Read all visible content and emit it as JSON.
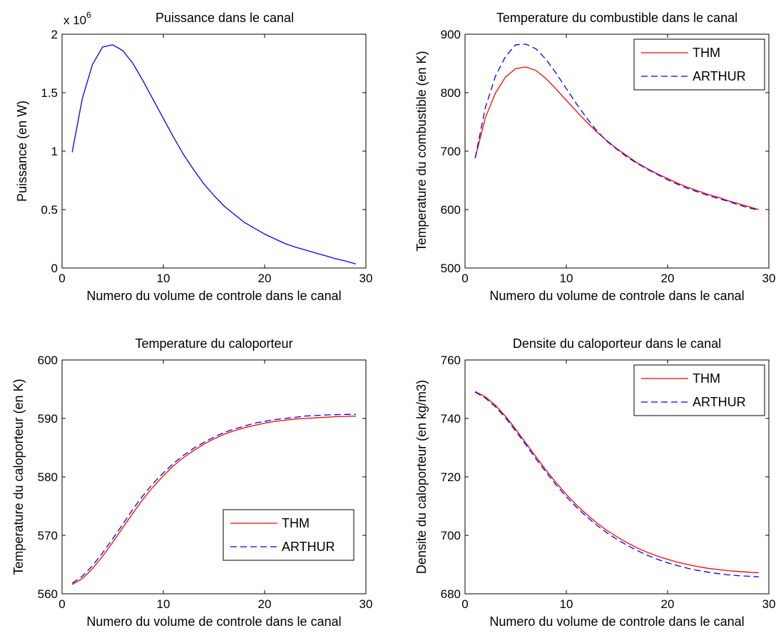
{
  "chart_data": [
    {
      "type": "line",
      "title": "Puissance dans le canal",
      "xlabel": "Numero du volume de controle dans le canal",
      "ylabel": "Puissance (en W)",
      "xlim": [
        0,
        30
      ],
      "ylim": [
        0,
        2
      ],
      "xticks": [
        0,
        10,
        20,
        30
      ],
      "yticks": [
        0,
        0.5,
        1,
        1.5,
        2
      ],
      "ytick_labels": [
        "0",
        "0.5",
        "1",
        "1.5",
        "2"
      ],
      "multiplier_base": "x 10",
      "multiplier_exp": "6",
      "grid": false,
      "legend": null,
      "series": [
        {
          "color": "#0000ff",
          "dash": "solid",
          "x": [
            1,
            2,
            3,
            4,
            5,
            6,
            7,
            8,
            9,
            10,
            11,
            12,
            13,
            14,
            15,
            16,
            17,
            18,
            19,
            20,
            21,
            22,
            23,
            24,
            25,
            26,
            27,
            28,
            29
          ],
          "values": [
            0.99,
            1.45,
            1.74,
            1.89,
            1.91,
            1.86,
            1.75,
            1.6,
            1.44,
            1.28,
            1.12,
            0.97,
            0.84,
            0.72,
            0.62,
            0.53,
            0.46,
            0.39,
            0.34,
            0.29,
            0.25,
            0.21,
            0.18,
            0.155,
            0.13,
            0.105,
            0.08,
            0.06,
            0.035
          ]
        }
      ]
    },
    {
      "type": "line",
      "title": "Temperature du combustible dans le canal",
      "xlabel": "Numero du volume de controle dans le canal",
      "ylabel": "Temperature du combustible (en K)",
      "xlim": [
        0,
        30
      ],
      "ylim": [
        500,
        900
      ],
      "xticks": [
        0,
        10,
        20,
        30
      ],
      "yticks": [
        500,
        600,
        700,
        800,
        900
      ],
      "ytick_labels": [
        "500",
        "600",
        "700",
        "800",
        "900"
      ],
      "grid": false,
      "legend": "top-right",
      "series": [
        {
          "name": "THM",
          "color": "#ff0000",
          "dash": "solid",
          "x": [
            1,
            2,
            3,
            4,
            5,
            6,
            7,
            8,
            9,
            10,
            11,
            12,
            13,
            14,
            15,
            16,
            17,
            18,
            19,
            20,
            21,
            22,
            23,
            24,
            25,
            26,
            27,
            28,
            29
          ],
          "values": [
            688,
            757,
            799,
            827,
            841,
            844,
            838,
            824,
            806,
            787,
            768,
            750,
            733,
            718,
            704,
            692,
            680,
            670,
            661,
            653,
            645,
            638,
            632,
            626,
            621,
            615,
            610,
            605,
            600
          ]
        },
        {
          "name": "ARTHUR",
          "color": "#0000ff",
          "dash": "dashed",
          "x": [
            1,
            2,
            3,
            4,
            5,
            6,
            7,
            8,
            9,
            10,
            11,
            12,
            13,
            14,
            15,
            16,
            17,
            18,
            19,
            20,
            21,
            22,
            23,
            24,
            25,
            26,
            27,
            28,
            29
          ],
          "values": [
            688,
            774,
            828,
            862,
            882,
            883,
            875,
            857,
            833,
            807,
            781,
            757,
            735,
            717,
            703,
            690,
            679,
            669,
            660,
            651,
            643,
            636,
            630,
            624,
            619,
            614,
            608,
            603,
            599
          ]
        }
      ]
    },
    {
      "type": "line",
      "title": "Temperature du caloporteur",
      "xlabel": "Numero du volume de controle dans le canal",
      "ylabel": "Temperature du caloporteur (en K)",
      "xlim": [
        0,
        30
      ],
      "ylim": [
        560,
        600
      ],
      "xticks": [
        0,
        10,
        20,
        30
      ],
      "yticks": [
        560,
        570,
        580,
        590,
        600
      ],
      "ytick_labels": [
        "560",
        "570",
        "580",
        "590",
        "600"
      ],
      "grid": false,
      "legend": "bottom-right",
      "series": [
        {
          "name": "THM",
          "color": "#ff0000",
          "dash": "solid",
          "x": [
            1,
            2,
            3,
            4,
            5,
            6,
            7,
            8,
            9,
            10,
            11,
            12,
            13,
            14,
            15,
            16,
            17,
            18,
            19,
            20,
            21,
            22,
            23,
            24,
            25,
            26,
            27,
            28,
            29
          ],
          "values": [
            561.6,
            562.6,
            564.3,
            566.4,
            568.8,
            571.3,
            573.8,
            576.2,
            578.3,
            580.2,
            581.9,
            583.3,
            584.5,
            585.6,
            586.5,
            587.3,
            587.9,
            588.4,
            588.8,
            589.2,
            589.5,
            589.7,
            589.9,
            590.0,
            590.1,
            590.2,
            590.3,
            590.35,
            590.4
          ]
        },
        {
          "name": "ARTHUR",
          "color": "#0000ff",
          "dash": "dashed",
          "x": [
            1,
            2,
            3,
            4,
            5,
            6,
            7,
            8,
            9,
            10,
            11,
            12,
            13,
            14,
            15,
            16,
            17,
            18,
            19,
            20,
            21,
            22,
            23,
            24,
            25,
            26,
            27,
            28,
            29
          ],
          "values": [
            561.8,
            563.0,
            564.8,
            567.0,
            569.4,
            571.9,
            574.5,
            576.8,
            578.9,
            580.7,
            582.3,
            583.7,
            584.9,
            585.9,
            586.8,
            587.6,
            588.2,
            588.7,
            589.2,
            589.5,
            589.8,
            590.0,
            590.2,
            590.4,
            590.5,
            590.6,
            590.65,
            590.7,
            590.7
          ]
        }
      ]
    },
    {
      "type": "line",
      "title": "Densite du caloporteur dans le canal",
      "xlabel": "Numero du volume de controle dans le canal",
      "ylabel": "Densite du caloporteur (en kg/m3)",
      "xlim": [
        0,
        30
      ],
      "ylim": [
        680,
        760
      ],
      "xticks": [
        0,
        10,
        20,
        30
      ],
      "yticks": [
        680,
        700,
        720,
        740,
        760
      ],
      "ytick_labels": [
        "680",
        "700",
        "720",
        "740",
        "760"
      ],
      "grid": false,
      "legend": "top-right",
      "series": [
        {
          "name": "THM",
          "color": "#ff0000",
          "dash": "solid",
          "x": [
            1,
            2,
            3,
            4,
            5,
            6,
            7,
            8,
            9,
            10,
            11,
            12,
            13,
            14,
            15,
            16,
            17,
            18,
            19,
            20,
            21,
            22,
            23,
            24,
            25,
            26,
            27,
            28,
            29
          ],
          "values": [
            749.2,
            747.4,
            744.5,
            740.7,
            736.3,
            731.6,
            726.9,
            722.3,
            718.0,
            714.0,
            710.4,
            707.2,
            704.3,
            701.7,
            699.5,
            697.5,
            695.7,
            694.2,
            692.9,
            691.8,
            690.8,
            690.0,
            689.3,
            688.7,
            688.3,
            687.9,
            687.6,
            687.4,
            687.2
          ]
        },
        {
          "name": "ARTHUR",
          "color": "#0000ff",
          "dash": "dashed",
          "x": [
            1,
            2,
            3,
            4,
            5,
            6,
            7,
            8,
            9,
            10,
            11,
            12,
            13,
            14,
            15,
            16,
            17,
            18,
            19,
            20,
            21,
            22,
            23,
            24,
            25,
            26,
            27,
            28,
            29
          ],
          "values": [
            749.0,
            747.0,
            744.0,
            740.2,
            735.7,
            731.0,
            726.2,
            721.6,
            717.2,
            713.2,
            709.6,
            706.4,
            703.5,
            700.9,
            698.6,
            696.6,
            694.8,
            693.2,
            691.8,
            690.6,
            689.6,
            688.7,
            688.0,
            687.4,
            686.9,
            686.5,
            686.2,
            686.0,
            685.8
          ]
        }
      ]
    }
  ]
}
